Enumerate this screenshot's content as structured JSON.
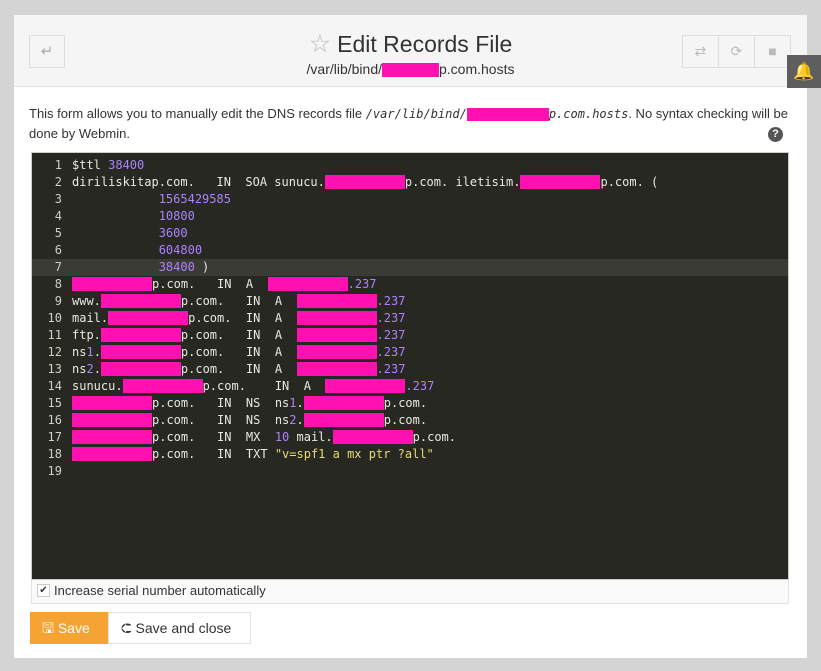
{
  "header": {
    "title": "Edit Records File",
    "subtitle_prefix": "/var/lib/bind/",
    "subtitle_suffix": "p.com.hosts",
    "back_icon": "return-arrow-icon",
    "star_icon": "star-icon"
  },
  "toolbar": {
    "icons": [
      "retweet-icon",
      "refresh-icon",
      "stop-icon"
    ]
  },
  "notification_icon": "bell-icon",
  "description": {
    "before": "This form allows you to manually edit the DNS records file ",
    "path_prefix": "/var/lib/bind/",
    "path_suffix": "p.com.hosts",
    "after": ". No syntax checking will be done by Webmin.",
    "help": "?"
  },
  "redaction_color": "#ff10b0",
  "editor": {
    "active_line": 7,
    "lines": [
      [
        [
          "t",
          "$ttl "
        ],
        [
          "n",
          "38400"
        ]
      ],
      [
        [
          "t",
          "diriliskitap.com.   IN  SOA sunucu."
        ],
        [
          "r",
          ""
        ],
        [
          "t",
          "p.com. iletisim."
        ],
        [
          "r",
          ""
        ],
        [
          "t",
          "p.com. ("
        ]
      ],
      [
        [
          "t",
          "            "
        ],
        [
          "n",
          "1565429585"
        ]
      ],
      [
        [
          "t",
          "            "
        ],
        [
          "n",
          "10800"
        ]
      ],
      [
        [
          "t",
          "            "
        ],
        [
          "n",
          "3600"
        ]
      ],
      [
        [
          "t",
          "            "
        ],
        [
          "n",
          "604800"
        ]
      ],
      [
        [
          "t",
          "            "
        ],
        [
          "n",
          "38400"
        ],
        [
          "t",
          " )"
        ]
      ],
      [
        [
          "r",
          ""
        ],
        [
          "t",
          "p.com.   IN  A  "
        ],
        [
          "r",
          ""
        ],
        [
          "n",
          ".237"
        ]
      ],
      [
        [
          "t",
          "www."
        ],
        [
          "r",
          ""
        ],
        [
          "t",
          "p.com.   IN  A  "
        ],
        [
          "r",
          ""
        ],
        [
          "n",
          ".237"
        ]
      ],
      [
        [
          "t",
          "mail."
        ],
        [
          "r",
          ""
        ],
        [
          "t",
          "p.com.  IN  A  "
        ],
        [
          "r",
          ""
        ],
        [
          "n",
          ".237"
        ]
      ],
      [
        [
          "t",
          "ftp."
        ],
        [
          "r",
          ""
        ],
        [
          "t",
          "p.com.   IN  A  "
        ],
        [
          "r",
          ""
        ],
        [
          "n",
          ".237"
        ]
      ],
      [
        [
          "t",
          "ns"
        ],
        [
          "n",
          "1"
        ],
        [
          "t",
          "."
        ],
        [
          "r",
          ""
        ],
        [
          "t",
          "p.com.   IN  A  "
        ],
        [
          "r",
          ""
        ],
        [
          "n",
          ".237"
        ]
      ],
      [
        [
          "t",
          "ns"
        ],
        [
          "n",
          "2"
        ],
        [
          "t",
          "."
        ],
        [
          "r",
          ""
        ],
        [
          "t",
          "p.com.   IN  A  "
        ],
        [
          "r",
          ""
        ],
        [
          "n",
          ".237"
        ]
      ],
      [
        [
          "t",
          "sunucu."
        ],
        [
          "r",
          ""
        ],
        [
          "t",
          "p.com.    IN  A  "
        ],
        [
          "r",
          ""
        ],
        [
          "n",
          ".237"
        ]
      ],
      [
        [
          "r",
          ""
        ],
        [
          "t",
          "p.com.   IN  NS  ns"
        ],
        [
          "n",
          "1"
        ],
        [
          "t",
          "."
        ],
        [
          "r",
          ""
        ],
        [
          "t",
          "p.com."
        ]
      ],
      [
        [
          "r",
          ""
        ],
        [
          "t",
          "p.com.   IN  NS  ns"
        ],
        [
          "n",
          "2"
        ],
        [
          "t",
          "."
        ],
        [
          "r",
          ""
        ],
        [
          "t",
          "p.com."
        ]
      ],
      [
        [
          "r",
          ""
        ],
        [
          "t",
          "p.com.   IN  MX  "
        ],
        [
          "n",
          "10"
        ],
        [
          "t",
          " mail."
        ],
        [
          "r",
          ""
        ],
        [
          "t",
          "p.com."
        ]
      ],
      [
        [
          "r",
          ""
        ],
        [
          "t",
          "p.com.   IN  TXT "
        ],
        [
          "s",
          "\"v=spf1 a mx ptr ?all\""
        ]
      ],
      []
    ]
  },
  "options": {
    "increase_serial_label": "Increase serial number automatically",
    "increase_serial_checked": true
  },
  "buttons": {
    "save": "Save",
    "save_close": "Save and close",
    "save_color": "#f5a433"
  }
}
